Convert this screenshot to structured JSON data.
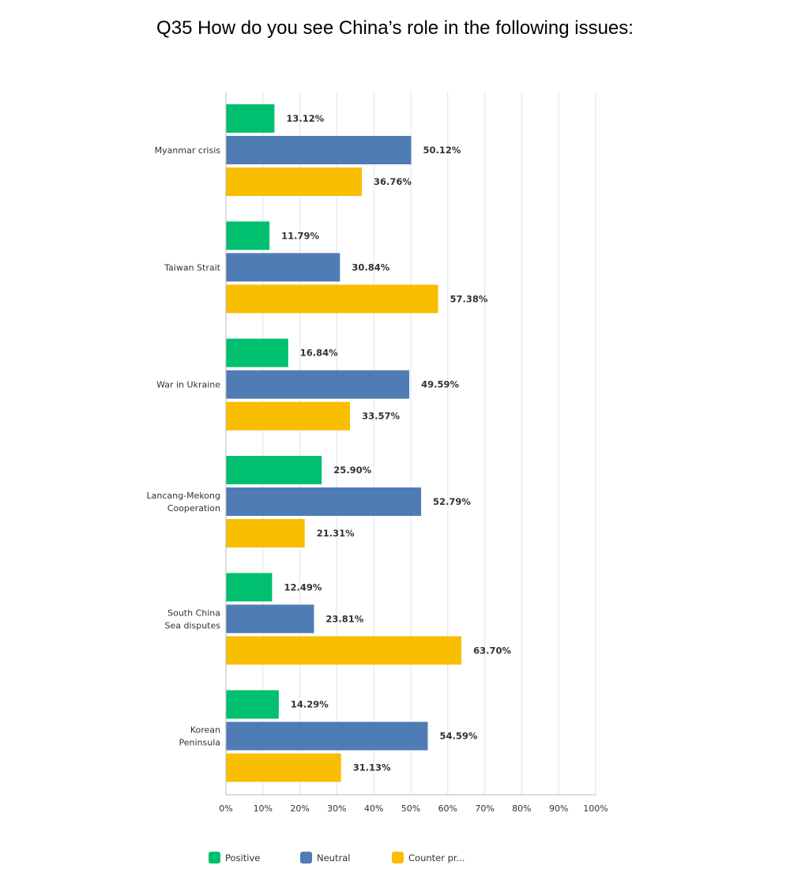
{
  "chart_data": {
    "type": "bar",
    "orientation": "horizontal",
    "title": "Q35 How do you see China’s role in the following issues:",
    "categories": [
      [
        "Myanmar crisis"
      ],
      [
        "Taiwan Strait"
      ],
      [
        "War in Ukraine"
      ],
      [
        "Lancang-Mekong",
        "Cooperation"
      ],
      [
        "South China",
        "Sea disputes"
      ],
      [
        "Korean",
        "Peninsula"
      ]
    ],
    "series": [
      {
        "name": "Positive",
        "color": "#00bf6f",
        "values": [
          13.12,
          11.79,
          16.84,
          25.9,
          12.49,
          14.29
        ]
      },
      {
        "name": "Neutral",
        "color": "#507cb6",
        "values": [
          50.12,
          30.84,
          49.59,
          52.79,
          23.81,
          54.59
        ]
      },
      {
        "name": "Counter pr...",
        "color": "#f9be00",
        "values": [
          36.76,
          57.38,
          33.57,
          21.31,
          63.7,
          31.13
        ]
      }
    ],
    "xlim": [
      0,
      100
    ],
    "xticks": [
      "0%",
      "10%",
      "20%",
      "30%",
      "40%",
      "50%",
      "60%",
      "70%",
      "80%",
      "90%",
      "100%"
    ],
    "value_suffix": "%",
    "grid": true,
    "legend": "bottom"
  }
}
